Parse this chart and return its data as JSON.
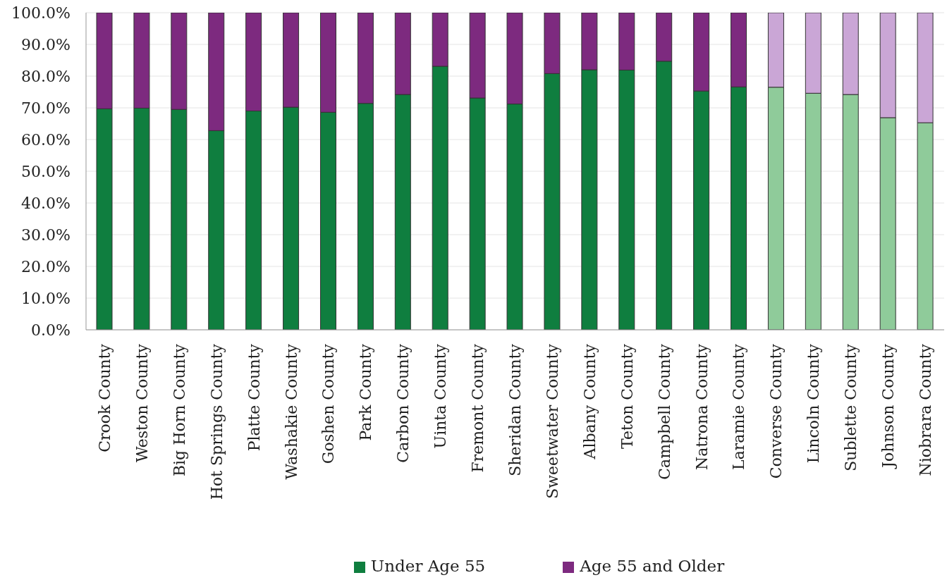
{
  "chart_data": {
    "type": "bar",
    "stacked": true,
    "categories": [
      "Crook County",
      "Weston County",
      "Big Horn County",
      "Hot Springs County",
      "Platte County",
      "Washakie County",
      "Goshen County",
      "Park County",
      "Carbon County",
      "Uinta County",
      "Fremont County",
      "Sheridan County",
      "Sweetwater County",
      "Albany County",
      "Teton County",
      "Campbell County",
      "Natrona County",
      "Laramie County",
      "Converse County",
      "Lincoln County",
      "Sublette County",
      "Johnson County",
      "Niobrara County"
    ],
    "series": [
      {
        "name": "Under Age 55",
        "color": "#0f7e3f",
        "colors": [
          "#0f7e3f",
          "#0f7e3f",
          "#0f7e3f",
          "#0f7e3f",
          "#0f7e3f",
          "#0f7e3f",
          "#0f7e3f",
          "#0f7e3f",
          "#0f7e3f",
          "#0f7e3f",
          "#0f7e3f",
          "#0f7e3f",
          "#0f7e3f",
          "#0f7e3f",
          "#0f7e3f",
          "#0f7e3f",
          "#0f7e3f",
          "#0f7e3f",
          "#8fcb9a",
          "#8fcb9a",
          "#8fcb9a",
          "#8fcb9a",
          "#8fcb9a"
        ],
        "values": [
          69.7,
          69.9,
          69.5,
          62.8,
          69.0,
          70.2,
          68.6,
          71.4,
          74.2,
          83.1,
          73.1,
          71.2,
          80.8,
          82.0,
          81.9,
          84.7,
          75.3,
          76.6,
          76.5,
          74.6,
          74.2,
          66.9,
          65.3
        ]
      },
      {
        "name": "Age 55 and Older",
        "color": "#7d2a7f",
        "colors": [
          "#7d2a7f",
          "#7d2a7f",
          "#7d2a7f",
          "#7d2a7f",
          "#7d2a7f",
          "#7d2a7f",
          "#7d2a7f",
          "#7d2a7f",
          "#7d2a7f",
          "#7d2a7f",
          "#7d2a7f",
          "#7d2a7f",
          "#7d2a7f",
          "#7d2a7f",
          "#7d2a7f",
          "#7d2a7f",
          "#7d2a7f",
          "#7d2a7f",
          "#caa6d6",
          "#caa6d6",
          "#caa6d6",
          "#caa6d6",
          "#caa6d6"
        ],
        "values": [
          30.3,
          30.1,
          30.5,
          37.2,
          31.0,
          29.8,
          31.4,
          28.6,
          25.8,
          16.9,
          26.9,
          28.8,
          19.2,
          18.0,
          18.1,
          15.3,
          24.7,
          23.4,
          23.5,
          25.4,
          25.8,
          33.1,
          34.7
        ]
      }
    ],
    "ylim": [
      0,
      100
    ],
    "yticks": [
      {
        "value": 0,
        "label": "0.0%"
      },
      {
        "value": 10,
        "label": "10.0%"
      },
      {
        "value": 20,
        "label": "20.0%"
      },
      {
        "value": 30,
        "label": "30.0%"
      },
      {
        "value": 40,
        "label": "40.0%"
      },
      {
        "value": 50,
        "label": "50.0%"
      },
      {
        "value": 60,
        "label": "60.0%"
      },
      {
        "value": 70,
        "label": "70.0%"
      },
      {
        "value": 80,
        "label": "80.0%"
      },
      {
        "value": 90,
        "label": "90.0%"
      },
      {
        "value": 100,
        "label": "100.0%"
      }
    ],
    "grid": "y",
    "legend": "bottom"
  }
}
